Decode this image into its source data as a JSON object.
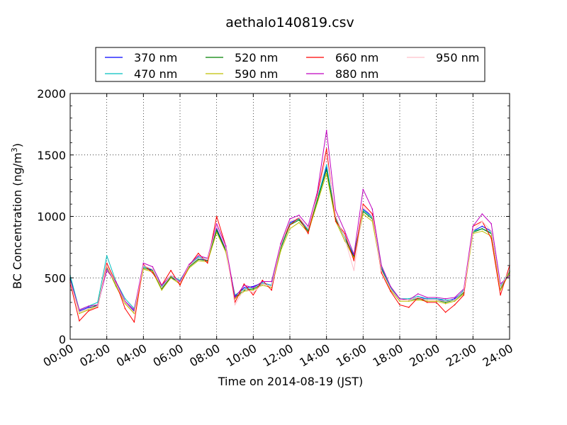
{
  "chart_data": {
    "type": "line",
    "title": "aethalo140819.csv",
    "xlabel": "Time on 2014-08-19 (JST)",
    "ylabel": "BC Concentration (ng/m³)",
    "ylabel_base": "BC Concentration (ng/m",
    "ylabel_sup": "3",
    "ylabel_close": ")",
    "xlim": [
      "00:00",
      "24:00"
    ],
    "ylim": [
      0,
      2000
    ],
    "grid": true,
    "legend_position": "top",
    "x_ticks": [
      "00:00",
      "02:00",
      "04:00",
      "06:00",
      "08:00",
      "10:00",
      "12:00",
      "14:00",
      "16:00",
      "18:00",
      "20:00",
      "22:00",
      "24:00"
    ],
    "y_ticks": [
      "0",
      "500",
      "1000",
      "1500",
      "2000"
    ],
    "x": [
      "00:00",
      "00:30",
      "01:00",
      "01:30",
      "02:00",
      "02:30",
      "03:00",
      "03:30",
      "04:00",
      "04:30",
      "05:00",
      "05:30",
      "06:00",
      "06:30",
      "07:00",
      "07:30",
      "08:00",
      "08:30",
      "09:00",
      "09:30",
      "10:00",
      "10:30",
      "11:00",
      "11:30",
      "12:00",
      "12:30",
      "13:00",
      "13:30",
      "14:00",
      "14:30",
      "15:00",
      "15:30",
      "16:00",
      "16:30",
      "17:00",
      "17:30",
      "18:00",
      "18:30",
      "19:00",
      "19:30",
      "20:00",
      "20:30",
      "21:00",
      "21:30",
      "22:00",
      "22:30",
      "23:00",
      "23:30",
      "24:00"
    ],
    "series": [
      {
        "name": "370 nm",
        "color": "#0000ff",
        "values": [
          500,
          230,
          260,
          270,
          580,
          450,
          300,
          230,
          600,
          560,
          420,
          500,
          470,
          600,
          660,
          640,
          900,
          730,
          350,
          420,
          430,
          460,
          440,
          750,
          950,
          980,
          900,
          1150,
          1400,
          1000,
          820,
          680,
          1060,
          1000,
          580,
          420,
          320,
          320,
          340,
          330,
          330,
          310,
          330,
          390,
          880,
          920,
          880,
          420,
          560
        ]
      },
      {
        "name": "470 nm",
        "color": "#00bfbf",
        "values": [
          520,
          240,
          270,
          300,
          680,
          470,
          330,
          250,
          590,
          570,
          430,
          520,
          480,
          600,
          670,
          650,
          880,
          720,
          360,
          410,
          420,
          460,
          440,
          760,
          940,
          980,
          890,
          1140,
          1420,
          980,
          830,
          690,
          1050,
          990,
          590,
          420,
          330,
          330,
          350,
          330,
          330,
          320,
          320,
          400,
          880,
          900,
          870,
          430,
          560
        ]
      },
      {
        "name": "520 nm",
        "color": "#008000",
        "values": [
          490,
          220,
          250,
          280,
          600,
          440,
          300,
          220,
          580,
          560,
          410,
          510,
          460,
          590,
          650,
          640,
          890,
          720,
          340,
          400,
          410,
          450,
          430,
          740,
          930,
          970,
          880,
          1130,
          1380,
          980,
          820,
          670,
          1040,
          980,
          570,
          410,
          320,
          320,
          330,
          320,
          320,
          300,
          320,
          380,
          870,
          900,
          860,
          410,
          550
        ]
      },
      {
        "name": "590 nm",
        "color": "#bfbf00",
        "values": [
          480,
          210,
          240,
          270,
          590,
          430,
          290,
          210,
          570,
          550,
          400,
          500,
          450,
          580,
          640,
          630,
          870,
          710,
          330,
          390,
          400,
          440,
          420,
          720,
          900,
          950,
          870,
          1110,
          1350,
          960,
          800,
          660,
          1020,
          960,
          560,
          400,
          310,
          310,
          320,
          310,
          310,
          290,
          310,
          370,
          860,
          880,
          840,
          400,
          540
        ]
      },
      {
        "name": "660 nm",
        "color": "#ff0000",
        "values": [
          460,
          150,
          230,
          260,
          620,
          460,
          250,
          140,
          610,
          540,
          440,
          560,
          440,
          600,
          700,
          620,
          1000,
          760,
          300,
          450,
          360,
          480,
          400,
          780,
          930,
          990,
          860,
          1180,
          1550,
          960,
          860,
          640,
          1100,
          1020,
          540,
          390,
          280,
          260,
          340,
          300,
          300,
          220,
          280,
          360,
          920,
          960,
          820,
          360,
          600
        ]
      },
      {
        "name": "880 nm",
        "color": "#bf00bf",
        "values": [
          480,
          240,
          270,
          280,
          560,
          470,
          310,
          240,
          620,
          590,
          440,
          520,
          470,
          610,
          680,
          660,
          940,
          760,
          340,
          440,
          420,
          470,
          470,
          780,
          980,
          1010,
          920,
          1200,
          1700,
          1050,
          880,
          690,
          1220,
          1060,
          600,
          430,
          330,
          320,
          370,
          340,
          340,
          330,
          340,
          410,
          920,
          1020,
          940,
          450,
          520
        ]
      },
      {
        "name": "950 nm",
        "color": "#ffc0cb",
        "values": [
          470,
          220,
          250,
          270,
          600,
          450,
          300,
          220,
          600,
          570,
          420,
          520,
          460,
          600,
          660,
          650,
          920,
          740,
          280,
          410,
          380,
          450,
          430,
          760,
          960,
          990,
          900,
          1160,
          1500,
          1000,
          820,
          560,
          1080,
          1000,
          560,
          410,
          320,
          320,
          340,
          320,
          320,
          310,
          320,
          390,
          880,
          960,
          880,
          420,
          560
        ]
      }
    ]
  }
}
